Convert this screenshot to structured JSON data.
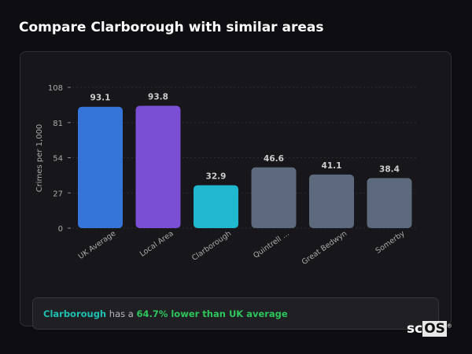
{
  "title": "Compare Clarborough with similar areas",
  "chart_data": {
    "type": "bar",
    "title": "",
    "xlabel": "",
    "ylabel": "Crimes per 1,000",
    "ylim": [
      0,
      108
    ],
    "yticks": [
      0,
      27,
      54,
      81,
      108
    ],
    "grid": true,
    "categories": [
      "UK Average",
      "Local Area",
      "Clarborough",
      "Quintrell ...",
      "Great Bedwyn",
      "Somerby"
    ],
    "values": [
      93.1,
      93.8,
      32.9,
      46.6,
      41.1,
      38.4
    ],
    "colors": [
      "#3574d8",
      "#7b4fd4",
      "#1fb8cf",
      "#5d6a7e",
      "#5d6a7e",
      "#5d6a7e"
    ]
  },
  "summary": {
    "area": "Clarborough",
    "connector": " has a ",
    "comparison": "64.7% lower than UK average",
    "area_color": "#1fc0b0",
    "comparison_color": "#2ec55c"
  },
  "logo": {
    "text": "scOS"
  }
}
